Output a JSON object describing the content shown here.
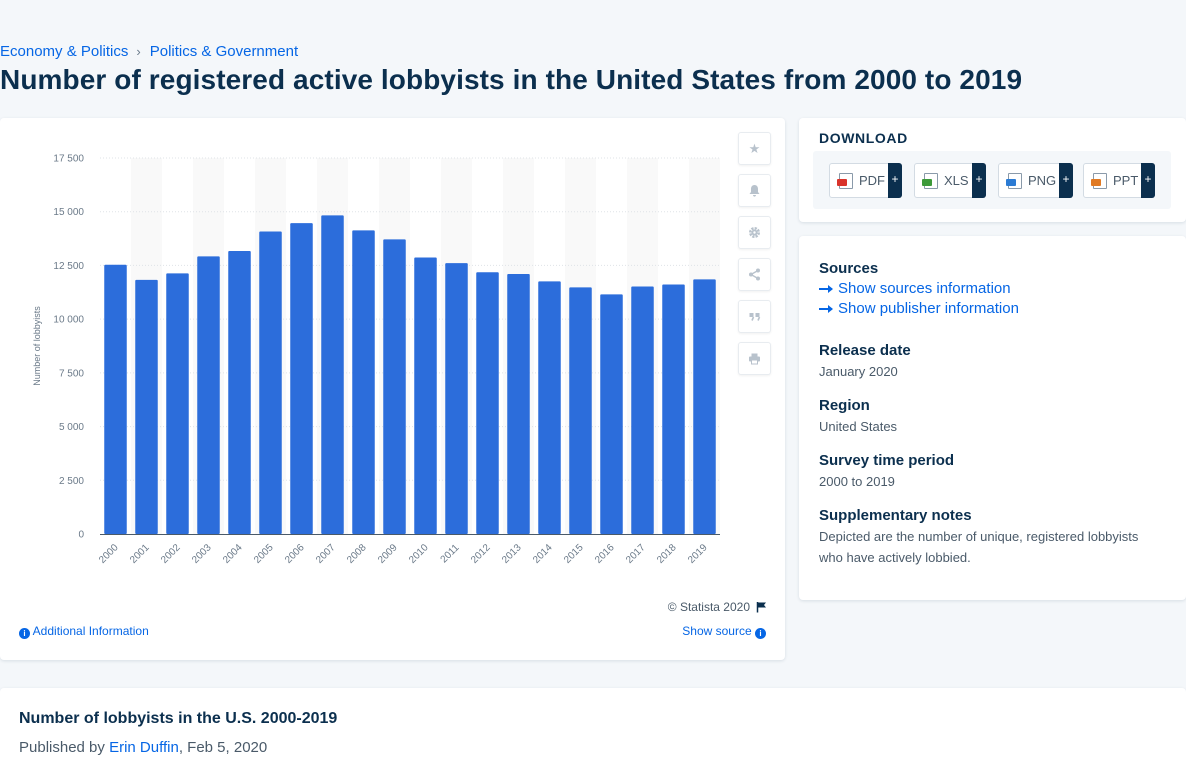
{
  "breadcrumb": [
    "Economy & Politics",
    "Politics & Government"
  ],
  "page_title": "Number of registered active lobbyists in the United States from 2000 to 2019",
  "chart_data": {
    "type": "bar",
    "title": "",
    "xlabel": "",
    "ylabel": "Number of lobbyists",
    "categories": [
      "2000",
      "2001",
      "2002",
      "2003",
      "2004",
      "2005",
      "2006",
      "2007",
      "2008",
      "2009",
      "2010",
      "2011",
      "2012",
      "2013",
      "2014",
      "2015",
      "2016",
      "2017",
      "2018",
      "2019"
    ],
    "values": [
      12530,
      11830,
      12130,
      12920,
      13170,
      14080,
      14470,
      14830,
      14130,
      13710,
      12870,
      12610,
      12180,
      12100,
      11760,
      11480,
      11150,
      11520,
      11610,
      11850
    ],
    "ylim": [
      0,
      17500
    ],
    "yticks": [
      0,
      2500,
      5000,
      7500,
      10000,
      12500,
      15000,
      17500
    ],
    "ytick_labels": [
      "0",
      "2 500",
      "5 000",
      "7 500",
      "10 000",
      "12 500",
      "15 000",
      "17 500"
    ],
    "bar_color": "#2c6ddb",
    "grid": true,
    "legend": "none"
  },
  "chart_footer": {
    "copyright": "© Statista 2020",
    "additional_info": "Additional Information",
    "show_source": "Show source"
  },
  "download": {
    "heading": "DOWNLOAD",
    "buttons": [
      {
        "label": "PDF",
        "color": "#d9332b"
      },
      {
        "label": "XLS",
        "color": "#3d9a3a"
      },
      {
        "label": "PNG",
        "color": "#2b7bd4"
      },
      {
        "label": "PPT",
        "color": "#e07a24"
      }
    ],
    "plus": "+"
  },
  "meta": {
    "sources_label": "Sources",
    "show_sources": "Show sources information",
    "show_publisher": "Show publisher information",
    "release_label": "Release date",
    "release_value": "January 2020",
    "region_label": "Region",
    "region_value": "United States",
    "survey_label": "Survey time period",
    "survey_value": "2000 to 2019",
    "notes_label": "Supplementary notes",
    "notes_value": "Depicted are the number of unique, registered lobbyists who have actively lobbied."
  },
  "bottom": {
    "title": "Number of lobbyists in the U.S. 2000-2019",
    "published_prefix": "Published by ",
    "author": "Erin Duffin",
    "date": ", Feb 5, 2020"
  }
}
